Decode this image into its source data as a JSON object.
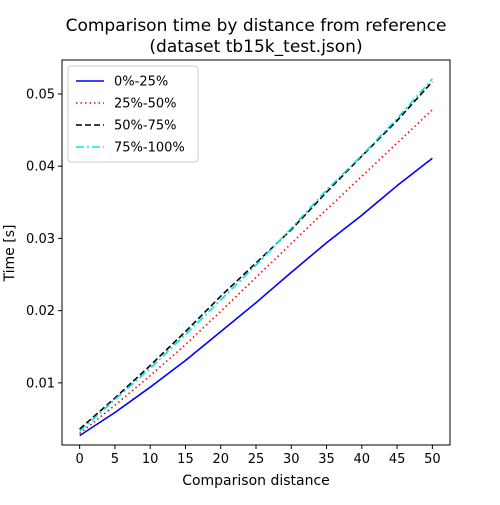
{
  "chart_data": {
    "type": "line",
    "title": "Comparison time by distance from reference",
    "subtitle": "(dataset tb15k_test.json)",
    "xlabel": "Comparison distance",
    "ylabel": "Time [s]",
    "xlim": [
      -2.5,
      52.5
    ],
    "ylim": [
      0.0014,
      0.0547
    ],
    "xticks": [
      0,
      5,
      10,
      15,
      20,
      25,
      30,
      35,
      40,
      45,
      50
    ],
    "yticks": [
      0.01,
      0.02,
      0.03,
      0.04,
      0.05
    ],
    "ytick_labels": [
      "0.01",
      "0.02",
      "0.03",
      "0.04",
      "0.05"
    ],
    "grid": false,
    "legend_position": "upper-left",
    "x": [
      0,
      5,
      10,
      15,
      20,
      25,
      30,
      35,
      40,
      45,
      50
    ],
    "series": [
      {
        "name": "0%-25%",
        "color": "#0000ff",
        "style": "solid",
        "values": [
          0.0027,
          0.0059,
          0.0094,
          0.0131,
          0.0171,
          0.0211,
          0.0253,
          0.0294,
          0.0332,
          0.0373,
          0.0411
        ]
      },
      {
        "name": "25%-50%",
        "color": "#ff0000",
        "style": "dotted",
        "values": [
          0.003,
          0.0069,
          0.011,
          0.0153,
          0.0199,
          0.0246,
          0.0293,
          0.034,
          0.0386,
          0.0432,
          0.0478
        ]
      },
      {
        "name": "50%-75%",
        "color": "#000000",
        "style": "dashed",
        "values": [
          0.0036,
          0.0079,
          0.0124,
          0.0171,
          0.022,
          0.0266,
          0.0312,
          0.0364,
          0.0414,
          0.0463,
          0.0517
        ]
      },
      {
        "name": "75%-100%",
        "color": "#00e5e5",
        "style": "dashdot",
        "values": [
          0.0033,
          0.0077,
          0.012,
          0.0167,
          0.0215,
          0.0263,
          0.0314,
          0.0367,
          0.0415,
          0.0466,
          0.0521
        ]
      }
    ]
  }
}
